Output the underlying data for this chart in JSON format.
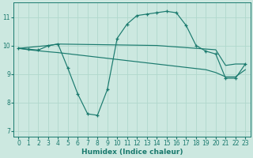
{
  "xlabel": "Humidex (Indice chaleur)",
  "xlim": [
    -0.5,
    23.5
  ],
  "ylim": [
    6.8,
    11.5
  ],
  "xticks": [
    0,
    1,
    2,
    3,
    4,
    5,
    6,
    7,
    8,
    9,
    10,
    11,
    12,
    13,
    14,
    15,
    16,
    17,
    18,
    19,
    20,
    21,
    22,
    23
  ],
  "yticks": [
    7,
    8,
    9,
    10,
    11
  ],
  "background_color": "#cce8e0",
  "grid_color": "#b0d8cc",
  "line_color": "#1a7a6e",
  "line1_x": [
    0,
    3,
    4,
    14,
    20,
    21,
    22,
    23
  ],
  "line1_y": [
    9.9,
    10.0,
    10.05,
    10.0,
    9.85,
    9.3,
    9.35,
    9.35
  ],
  "line2_x": [
    0,
    1,
    3,
    4,
    9,
    14,
    19,
    20,
    21,
    22,
    23
  ],
  "line2_y": [
    9.9,
    9.85,
    9.78,
    9.75,
    9.55,
    9.35,
    9.15,
    9.05,
    8.9,
    8.9,
    9.15
  ],
  "curve_x": [
    0,
    1,
    2,
    3,
    4,
    5,
    6,
    7,
    8,
    9,
    10,
    11,
    12,
    13,
    14,
    15,
    16,
    17,
    18,
    19,
    20,
    21,
    22,
    23
  ],
  "curve_y": [
    9.9,
    9.87,
    9.84,
    9.99,
    10.05,
    9.2,
    8.3,
    7.6,
    7.55,
    8.45,
    10.25,
    10.75,
    11.05,
    11.1,
    11.15,
    11.2,
    11.15,
    10.7,
    10.0,
    9.8,
    9.7,
    8.85,
    8.85,
    9.35
  ],
  "tick_fontsize": 5.5,
  "xlabel_fontsize": 6.5,
  "linewidth": 0.85,
  "markersize": 3.5,
  "markeredgewidth": 0.9
}
